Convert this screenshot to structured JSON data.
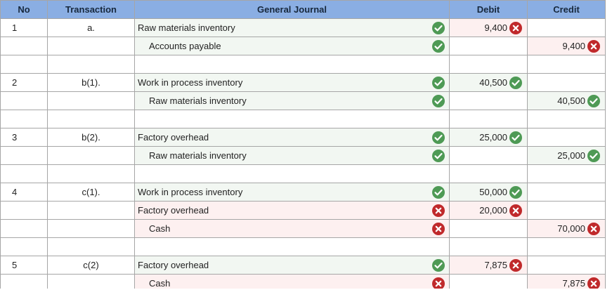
{
  "headers": {
    "no": "No",
    "transaction": "Transaction",
    "journal": "General Journal",
    "debit": "Debit",
    "credit": "Credit"
  },
  "rows": [
    {
      "type": "entry",
      "no": "1",
      "transaction": "a.",
      "account": "Raw materials inventory",
      "indent": false,
      "account_status": "correct",
      "debit": "9,400",
      "debit_status": "incorrect",
      "credit": "",
      "credit_status": ""
    },
    {
      "type": "entry",
      "no": "",
      "transaction": "",
      "account": "Accounts payable",
      "indent": true,
      "account_status": "correct",
      "debit": "",
      "debit_status": "",
      "credit": "9,400",
      "credit_status": "incorrect"
    },
    {
      "type": "blank"
    },
    {
      "type": "entry",
      "no": "2",
      "transaction": "b(1).",
      "account": "Work in process inventory",
      "indent": false,
      "account_status": "correct",
      "debit": "40,500",
      "debit_status": "correct",
      "credit": "",
      "credit_status": ""
    },
    {
      "type": "entry",
      "no": "",
      "transaction": "",
      "account": "Raw materials inventory",
      "indent": true,
      "account_status": "correct",
      "debit": "",
      "debit_status": "",
      "credit": "40,500",
      "credit_status": "correct"
    },
    {
      "type": "blank"
    },
    {
      "type": "entry",
      "no": "3",
      "transaction": "b(2).",
      "account": "Factory overhead",
      "indent": false,
      "account_status": "correct",
      "debit": "25,000",
      "debit_status": "correct",
      "credit": "",
      "credit_status": ""
    },
    {
      "type": "entry",
      "no": "",
      "transaction": "",
      "account": "Raw materials inventory",
      "indent": true,
      "account_status": "correct",
      "debit": "",
      "debit_status": "",
      "credit": "25,000",
      "credit_status": "correct"
    },
    {
      "type": "blank"
    },
    {
      "type": "entry",
      "no": "4",
      "transaction": "c(1).",
      "account": "Work in process inventory",
      "indent": false,
      "account_status": "correct",
      "debit": "50,000",
      "debit_status": "correct",
      "credit": "",
      "credit_status": ""
    },
    {
      "type": "entry",
      "no": "",
      "transaction": "",
      "account": "Factory overhead",
      "indent": false,
      "account_status": "incorrect",
      "debit": "20,000",
      "debit_status": "incorrect",
      "credit": "",
      "credit_status": ""
    },
    {
      "type": "entry",
      "no": "",
      "transaction": "",
      "account": "Cash",
      "indent": true,
      "account_status": "incorrect",
      "debit": "",
      "debit_status": "",
      "credit": "70,000",
      "credit_status": "incorrect"
    },
    {
      "type": "blank"
    },
    {
      "type": "entry",
      "no": "5",
      "transaction": "c(2)",
      "account": "Factory overhead",
      "indent": false,
      "account_status": "correct",
      "debit": "7,875",
      "debit_status": "incorrect",
      "credit": "",
      "credit_status": ""
    },
    {
      "type": "entry",
      "no": "",
      "transaction": "",
      "account": "Cash",
      "indent": true,
      "account_status": "incorrect",
      "debit": "",
      "debit_status": "",
      "credit": "7,875",
      "credit_status": "incorrect"
    }
  ],
  "status_icons": {
    "correct": "check-icon",
    "incorrect": "cross-icon"
  },
  "colors": {
    "header_bg": "#8aaee3",
    "correct": "#4e9a55",
    "incorrect": "#c0292b",
    "correct_cell_bg": "#f2f7f2",
    "incorrect_cell_bg": "#fdf0f0"
  }
}
